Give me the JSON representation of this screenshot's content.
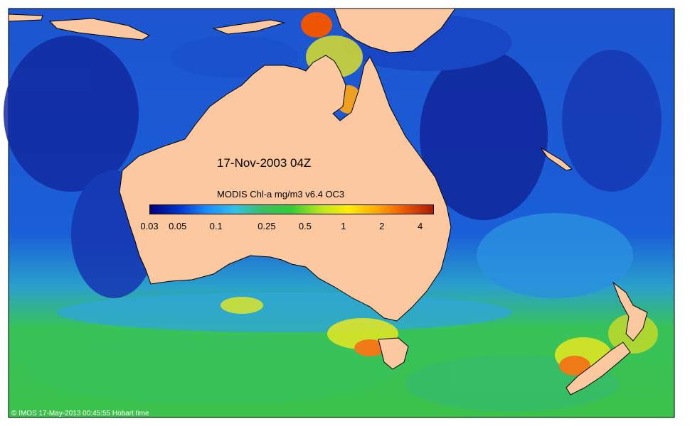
{
  "date_label": "17-Nov-2003 04Z",
  "legend": {
    "title": "MODIS Chl-a mg/m3 v6.4 OC3",
    "ticks": [
      "0.03",
      "0.05",
      "0.1",
      "0.25",
      "0.5",
      "1",
      "2",
      "4"
    ],
    "tick_values": [
      0.03,
      0.05,
      0.1,
      0.25,
      0.5,
      1,
      2,
      4
    ],
    "range": [
      0.03,
      5
    ],
    "scale": "log",
    "colors": [
      "#00007a",
      "#0033cc",
      "#1a8cff",
      "#33c0e6",
      "#3ac060",
      "#33cc33",
      "#b8e61a",
      "#ffee00",
      "#ffaa00",
      "#ee5500",
      "#aa1a00"
    ]
  },
  "map_colors": {
    "land": "#fcc8a0",
    "ocean_low": "#1330a8",
    "ocean_mid": "#1d66e0",
    "ocean_cyan": "#2fa7e8",
    "ocean_green": "#38c25a",
    "ocean_yellow": "#e6e820",
    "ocean_orange": "#f07a18"
  },
  "credit": "© IMOS 17-May-2013 00:45:55 Hobart time"
}
